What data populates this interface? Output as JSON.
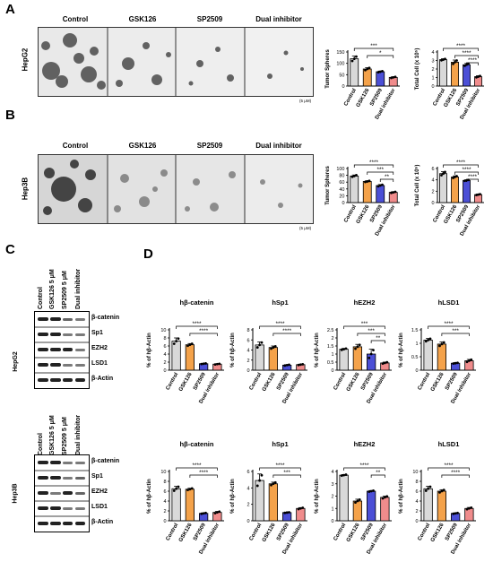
{
  "panels": {
    "A": "A",
    "B": "B",
    "C": "C",
    "D": "D"
  },
  "micro_columns": [
    "Control",
    "GSK126",
    "SP2509",
    "Dual inhibitor"
  ],
  "rowA_label": "HepG2",
  "rowB_label": "Hep3B",
  "scale_label": "(5 μM)",
  "western": {
    "lanes": [
      "Control",
      "GSK126 5 μM",
      "SP2509 5 μM",
      "Dual inhibitor"
    ],
    "bands": [
      "β-catenin",
      "Sp1",
      "EZH2",
      "LSD1",
      "β-Actin"
    ],
    "top_cell": "HepG2",
    "bottom_cell": "Hep3B"
  },
  "colors": {
    "Control": "#d9d9d9",
    "GSK126": "#f4a24a",
    "SP2509": "#4b4fd6",
    "Dual inhibitor": "#f08c8c"
  },
  "chart_data": [
    {
      "id": "A_spheres",
      "type": "bar",
      "categories": [
        "Control",
        "GSK126",
        "SP2509",
        "Dual inhibitor"
      ],
      "values": [
        120,
        75,
        63,
        38
      ],
      "errors": [
        12,
        6,
        3,
        3
      ],
      "ylabel": "Tumor Spheres",
      "ylim": [
        0,
        150
      ],
      "yticks": [
        0,
        50,
        100,
        150
      ],
      "sig": [
        {
          "a": 0,
          "b": 3,
          "label": "***"
        },
        {
          "a": 1,
          "b": 3,
          "label": "*"
        }
      ]
    },
    {
      "id": "A_cells",
      "type": "bar",
      "categories": [
        "Control",
        "GSK126",
        "SP2509",
        "Dual inhibitor"
      ],
      "values": [
        3.1,
        2.8,
        2.5,
        1.1
      ],
      "errors": [
        0.1,
        0.25,
        0.15,
        0.1
      ],
      "ylabel": "Total Cell (x 10⁵)",
      "ylim": [
        0,
        4
      ],
      "yticks": [
        0,
        1,
        2,
        3,
        4
      ],
      "sig": [
        {
          "a": 0,
          "b": 3,
          "label": "****"
        },
        {
          "a": 1,
          "b": 3,
          "label": "****"
        },
        {
          "a": 2,
          "b": 3,
          "label": "****"
        }
      ]
    },
    {
      "id": "B_spheres",
      "type": "bar",
      "categories": [
        "Control",
        "GSK126",
        "SP2509",
        "Dual inhibitor"
      ],
      "values": [
        78,
        62,
        50,
        30
      ],
      "errors": [
        3,
        2,
        3,
        2
      ],
      "ylabel": "Tumor Spheres",
      "ylim": [
        0,
        100
      ],
      "yticks": [
        0,
        20,
        40,
        60,
        80,
        100
      ],
      "sig": [
        {
          "a": 0,
          "b": 3,
          "label": "****"
        },
        {
          "a": 1,
          "b": 3,
          "label": "***"
        },
        {
          "a": 2,
          "b": 3,
          "label": "**"
        }
      ]
    },
    {
      "id": "B_cells",
      "type": "bar",
      "categories": [
        "Control",
        "GSK126",
        "SP2509",
        "Dual inhibitor"
      ],
      "values": [
        5.1,
        4.5,
        3.9,
        1.4
      ],
      "errors": [
        0.35,
        0.2,
        0.1,
        0.1
      ],
      "ylabel": "Total Cell (x 10⁵)",
      "ylim": [
        0,
        6
      ],
      "yticks": [
        0,
        2,
        4,
        6
      ],
      "sig": [
        {
          "a": 0,
          "b": 3,
          "label": "****"
        },
        {
          "a": 1,
          "b": 3,
          "label": "****"
        },
        {
          "a": 2,
          "b": 3,
          "label": "****"
        }
      ]
    },
    {
      "id": "D1_bcat",
      "type": "bar",
      "title": "hβ-catenin",
      "categories": [
        "Control",
        "GSK126",
        "SP2509",
        "Dual inhibitor"
      ],
      "values": [
        7.2,
        6.3,
        1.6,
        1.5
      ],
      "errors": [
        0.8,
        0.3,
        0.1,
        0.1
      ],
      "ylabel": "% of hβ-Actin",
      "ylim": [
        0,
        10
      ],
      "yticks": [
        0,
        2,
        4,
        6,
        8,
        10
      ],
      "sig": [
        {
          "a": 0,
          "b": 3,
          "label": "****"
        },
        {
          "a": 1,
          "b": 3,
          "label": "****"
        }
      ]
    },
    {
      "id": "D1_sp1",
      "type": "bar",
      "title": "hSp1",
      "categories": [
        "Control",
        "GSK126",
        "SP2509",
        "Dual inhibitor"
      ],
      "values": [
        5.0,
        4.5,
        1.0,
        1.1
      ],
      "errors": [
        0.6,
        0.3,
        0.1,
        0.1
      ],
      "ylabel": "% of hβ-Actin",
      "ylim": [
        0,
        8
      ],
      "yticks": [
        0,
        2,
        4,
        6,
        8
      ],
      "sig": [
        {
          "a": 0,
          "b": 3,
          "label": "****"
        },
        {
          "a": 1,
          "b": 3,
          "label": "****"
        }
      ]
    },
    {
      "id": "D1_ezh2",
      "type": "bar",
      "title": "hEZH2",
      "categories": [
        "Control",
        "GSK126",
        "SP2509",
        "Dual inhibitor"
      ],
      "values": [
        1.3,
        1.45,
        1.0,
        0.45
      ],
      "errors": [
        0.05,
        0.15,
        0.3,
        0.05
      ],
      "ylabel": "% of hβ-Actin",
      "ylim": [
        0,
        2.5
      ],
      "yticks": [
        0,
        0.5,
        1.0,
        1.5,
        2.0,
        2.5
      ],
      "sig": [
        {
          "a": 0,
          "b": 3,
          "label": "***"
        },
        {
          "a": 1,
          "b": 3,
          "label": "***"
        },
        {
          "a": 2,
          "b": 3,
          "label": "**"
        }
      ]
    },
    {
      "id": "D1_lsd1",
      "type": "bar",
      "title": "hLSD1",
      "categories": [
        "Control",
        "GSK126",
        "SP2509",
        "Dual inhibitor"
      ],
      "values": [
        1.12,
        0.97,
        0.26,
        0.35
      ],
      "errors": [
        0.06,
        0.08,
        0.02,
        0.05
      ],
      "ylabel": "% of hβ-Actin",
      "ylim": [
        0,
        1.5
      ],
      "yticks": [
        0,
        0.5,
        1.0,
        1.5
      ],
      "sig": [
        {
          "a": 0,
          "b": 3,
          "label": "****"
        },
        {
          "a": 1,
          "b": 3,
          "label": "***"
        }
      ]
    },
    {
      "id": "D2_bcat",
      "type": "bar",
      "title": "hβ-catenin",
      "categories": [
        "Control",
        "GSK126",
        "SP2509",
        "Dual inhibitor"
      ],
      "values": [
        6.5,
        6.4,
        1.5,
        1.7
      ],
      "errors": [
        0.5,
        0.2,
        0.1,
        0.2
      ],
      "ylabel": "% of hβ-Actin",
      "ylim": [
        0,
        10
      ],
      "yticks": [
        0,
        2,
        4,
        6,
        8,
        10
      ],
      "sig": [
        {
          "a": 0,
          "b": 3,
          "label": "****"
        },
        {
          "a": 1,
          "b": 3,
          "label": "****"
        }
      ]
    },
    {
      "id": "D2_sp1",
      "type": "bar",
      "title": "hSp1",
      "categories": [
        "Control",
        "GSK126",
        "SP2509",
        "Dual inhibitor"
      ],
      "values": [
        4.9,
        4.5,
        1.0,
        1.5
      ],
      "errors": [
        0.8,
        0.2,
        0.05,
        0.1
      ],
      "ylabel": "% of hβ-Actin",
      "ylim": [
        0,
        6
      ],
      "yticks": [
        0,
        2,
        4,
        6
      ],
      "sig": [
        {
          "a": 0,
          "b": 3,
          "label": "****"
        },
        {
          "a": 1,
          "b": 3,
          "label": "***"
        }
      ]
    },
    {
      "id": "D2_ezh2",
      "type": "bar",
      "title": "hEZH2",
      "categories": [
        "Control",
        "GSK126",
        "SP2509",
        "Dual inhibitor"
      ],
      "values": [
        3.7,
        1.6,
        2.4,
        1.9
      ],
      "errors": [
        0.05,
        0.15,
        0.05,
        0.1
      ],
      "ylabel": "% of hβ-Actin",
      "ylim": [
        0,
        4
      ],
      "yticks": [
        0,
        1,
        2,
        3,
        4
      ],
      "sig": [
        {
          "a": 0,
          "b": 3,
          "label": "****"
        },
        {
          "a": 2,
          "b": 3,
          "label": "**"
        }
      ]
    },
    {
      "id": "D2_lsd1",
      "type": "bar",
      "title": "hLSD1",
      "categories": [
        "Control",
        "GSK126",
        "SP2509",
        "Dual inhibitor"
      ],
      "values": [
        6.5,
        6.0,
        1.5,
        2.5
      ],
      "errors": [
        0.5,
        0.3,
        0.1,
        0.2
      ],
      "ylabel": "% of hβ-Actin",
      "ylim": [
        0,
        10
      ],
      "yticks": [
        0,
        2,
        4,
        6,
        8,
        10
      ],
      "sig": [
        {
          "a": 0,
          "b": 3,
          "label": "****"
        },
        {
          "a": 1,
          "b": 3,
          "label": "****"
        }
      ]
    }
  ]
}
